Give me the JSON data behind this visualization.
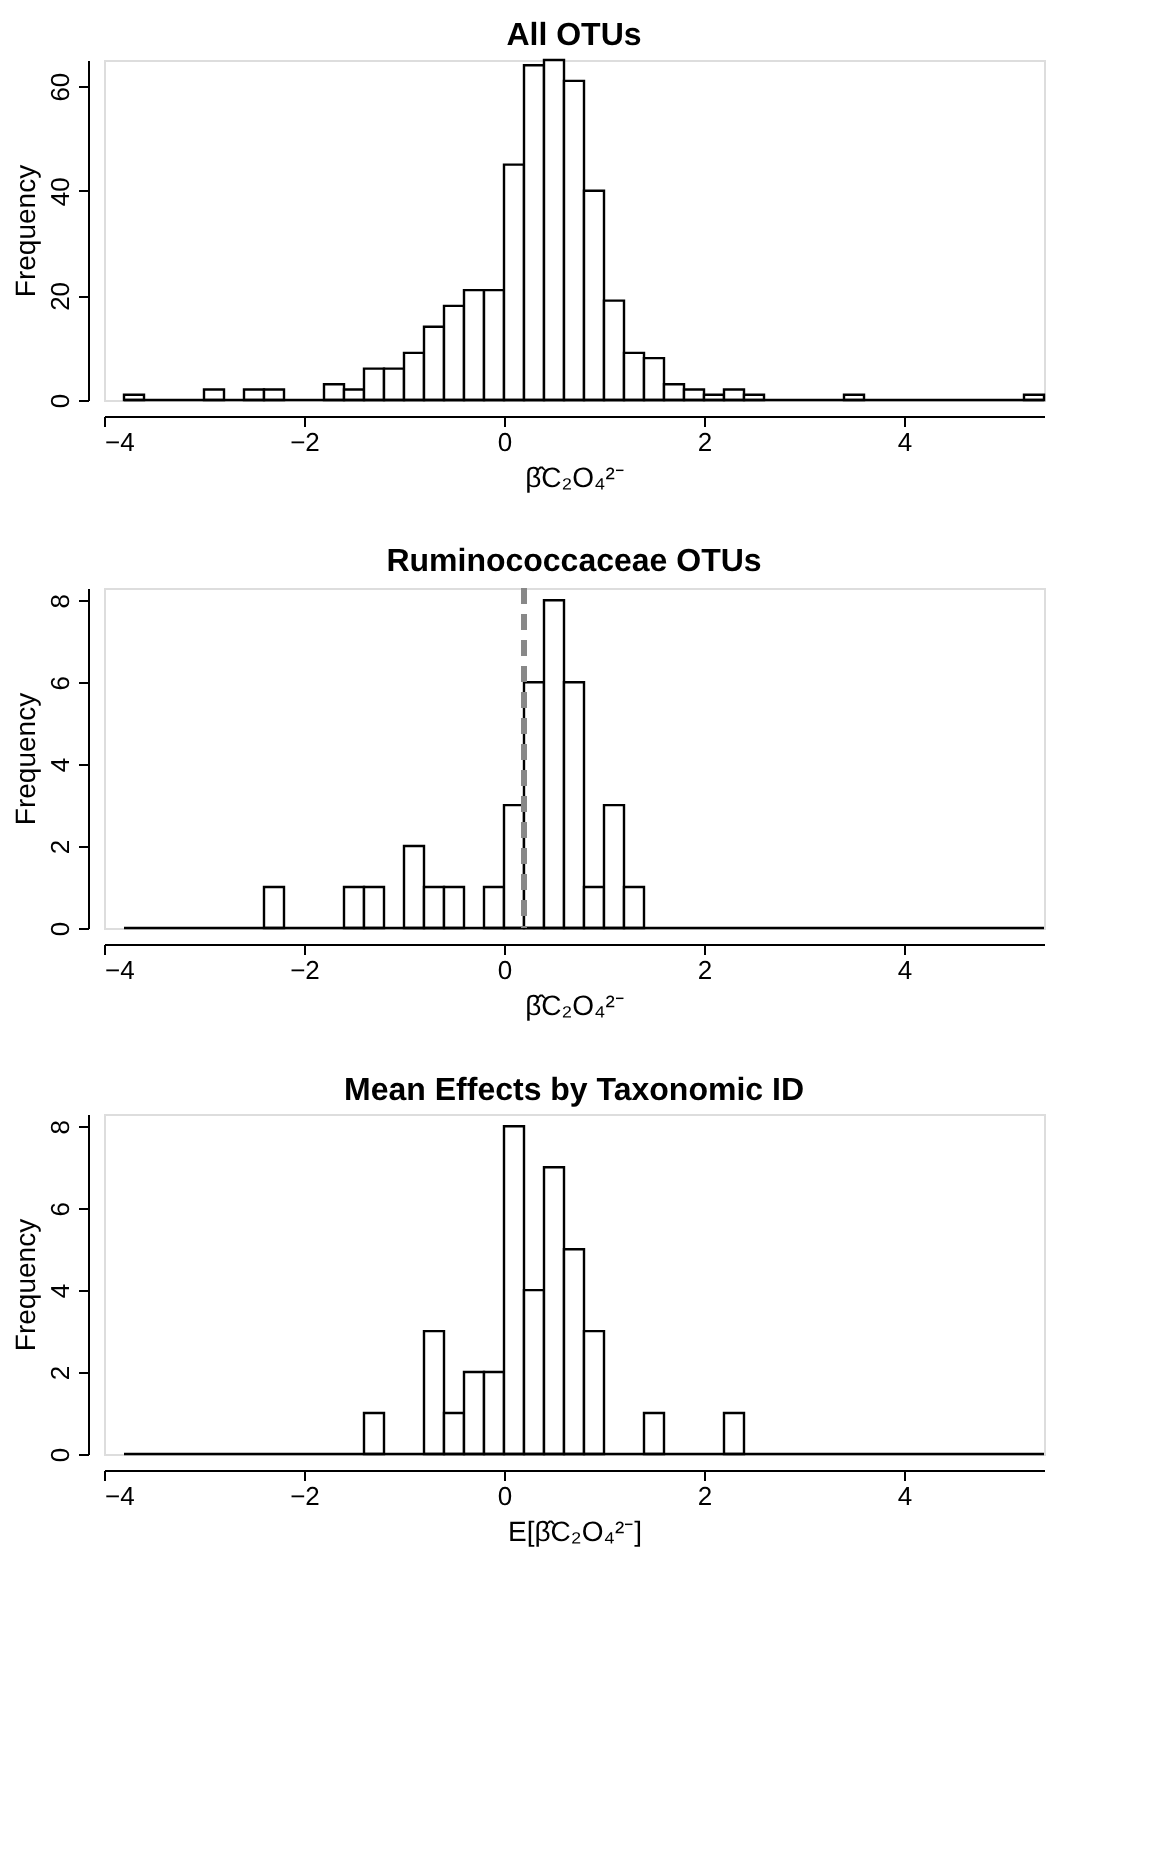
{
  "chart_data": [
    {
      "type": "histogram",
      "title": "All OTUs",
      "xlabel": "β̂C₂O₄²⁻",
      "ylabel": "Frequency",
      "color": "#ffffff",
      "bins": [
        -3.8,
        -3.6,
        -3.4,
        -3.2,
        -3.0,
        -2.8,
        -2.6,
        -2.4,
        -2.2,
        -2.0,
        -1.8,
        -1.6,
        -1.4,
        -1.2,
        -1.0,
        -0.8,
        -0.6,
        -0.4,
        -0.2,
        0.0,
        0.2,
        0.4,
        0.6,
        0.8,
        1.0,
        1.2,
        1.4,
        1.6,
        1.8,
        2.0,
        2.2,
        2.4,
        2.6,
        2.8,
        3.0,
        3.2,
        3.4,
        3.6,
        3.8,
        4.0,
        4.2,
        4.4,
        4.6,
        4.8,
        5.0,
        5.2,
        5.4
      ],
      "values": [
        1,
        0,
        0,
        0,
        2,
        0,
        2,
        2,
        0,
        0,
        3,
        2,
        6,
        6,
        9,
        14,
        18,
        21,
        21,
        45,
        64,
        65,
        61,
        40,
        19,
        9,
        8,
        3,
        2,
        1,
        2,
        1,
        0,
        0,
        0,
        0,
        1,
        0,
        0,
        0,
        0,
        0,
        0,
        0,
        0,
        1
      ],
      "xlim": [
        -4,
        5.4
      ],
      "xticks": [
        -4,
        -2,
        0,
        2,
        4
      ],
      "ylim": [
        0,
        65
      ],
      "yticks": [
        0,
        20,
        40,
        60
      ],
      "grid": false
    },
    {
      "type": "histogram",
      "title": "Ruminococcaceae OTUs",
      "xlabel": "β̂C₂O₄²⁻",
      "ylabel": "Frequency",
      "color": "#ffffff",
      "bins": [
        -3.8,
        -3.6,
        -3.4,
        -3.2,
        -3.0,
        -2.8,
        -2.6,
        -2.4,
        -2.2,
        -2.0,
        -1.8,
        -1.6,
        -1.4,
        -1.2,
        -1.0,
        -0.8,
        -0.6,
        -0.4,
        -0.2,
        0.0,
        0.2,
        0.4,
        0.6,
        0.8,
        1.0,
        1.2,
        1.4,
        1.6,
        1.8,
        2.0,
        2.2,
        2.4,
        2.6,
        2.8,
        3.0,
        3.2,
        3.4,
        3.6,
        3.8,
        4.0,
        4.2,
        4.4,
        4.6,
        4.8,
        5.0,
        5.2,
        5.4
      ],
      "values": [
        0,
        0,
        0,
        0,
        0,
        0,
        0,
        1,
        0,
        0,
        0,
        1,
        1,
        0,
        2,
        1,
        1,
        0,
        1,
        3,
        6,
        8,
        6,
        1,
        3,
        1,
        0,
        0,
        0,
        0,
        0,
        0,
        0,
        0,
        0,
        0,
        0,
        0,
        0,
        0,
        0,
        0,
        0,
        0,
        0,
        0
      ],
      "xlim": [
        -4,
        5.4
      ],
      "xticks": [
        -4,
        -2,
        0,
        2,
        4
      ],
      "ylim": [
        0,
        8.3
      ],
      "yticks": [
        0,
        2,
        4,
        6,
        8
      ],
      "grid": false,
      "ref_lines": [
        {
          "axis": "x",
          "value": 0.2,
          "color": "#888888",
          "line_style": "dashed"
        }
      ]
    },
    {
      "type": "histogram",
      "title": "Mean Effects by Taxonomic ID",
      "xlabel": "E[β̂C₂O₄²⁻]",
      "ylabel": "Frequency",
      "color": "#ffffff",
      "bins": [
        -3.8,
        -3.6,
        -3.4,
        -3.2,
        -3.0,
        -2.8,
        -2.6,
        -2.4,
        -2.2,
        -2.0,
        -1.8,
        -1.6,
        -1.4,
        -1.2,
        -1.0,
        -0.8,
        -0.6,
        -0.4,
        -0.2,
        0.0,
        0.2,
        0.4,
        0.6,
        0.8,
        1.0,
        1.2,
        1.4,
        1.6,
        1.8,
        2.0,
        2.2,
        2.4,
        2.6,
        2.8,
        3.0,
        3.2,
        3.4,
        3.6,
        3.8,
        4.0,
        4.2,
        4.4,
        4.6,
        4.8,
        5.0,
        5.2,
        5.4
      ],
      "values": [
        0,
        0,
        0,
        0,
        0,
        0,
        0,
        0,
        0,
        0,
        0,
        0,
        1,
        0,
        0,
        3,
        1,
        2,
        2,
        8,
        4,
        7,
        5,
        3,
        0,
        0,
        1,
        0,
        0,
        0,
        1,
        0,
        0,
        0,
        0,
        0,
        0,
        0,
        0,
        0,
        0,
        0,
        0,
        0,
        0,
        0
      ],
      "xlim": [
        -4,
        5.4
      ],
      "xticks": [
        -4,
        -2,
        0,
        2,
        4
      ],
      "ylim": [
        0,
        8.3
      ],
      "yticks": [
        0,
        2,
        4,
        6,
        8
      ],
      "grid": false
    }
  ]
}
